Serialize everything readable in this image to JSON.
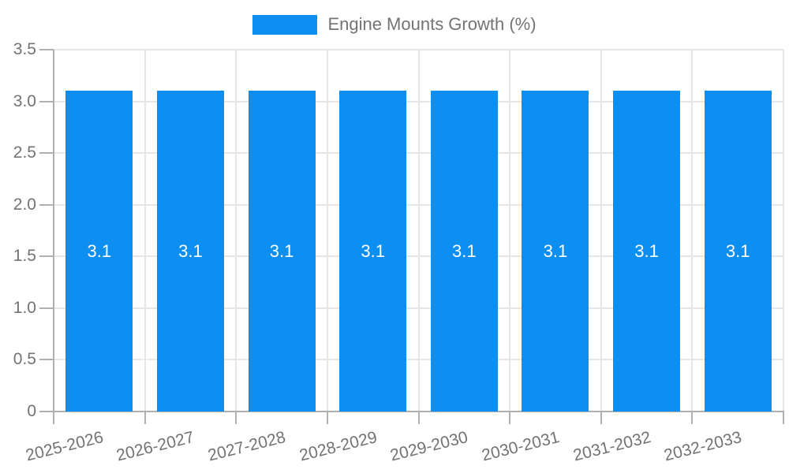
{
  "legend": {
    "label": "Engine Mounts Growth (%)"
  },
  "chart_data": {
    "type": "bar",
    "title": "",
    "legend_label": "Engine Mounts Growth (%)",
    "legend_position": "top-center",
    "categories": [
      "2025-2026",
      "2026-2027",
      "2027-2028",
      "2028-2029",
      "2029-2030",
      "2030-2031",
      "2031-2032",
      "2032-2033"
    ],
    "values": [
      3.1,
      3.1,
      3.1,
      3.1,
      3.1,
      3.1,
      3.1,
      3.1
    ],
    "bar_value_labels": [
      "3.1",
      "3.1",
      "3.1",
      "3.1",
      "3.1",
      "3.1",
      "3.1",
      "3.1"
    ],
    "xlabel": "",
    "ylabel": "",
    "ylim": [
      0,
      3.5
    ],
    "ytick_values": [
      0,
      0.5,
      1.0,
      1.5,
      2.0,
      2.5,
      3.0,
      3.5
    ],
    "ytick_labels": [
      "0",
      "0.5",
      "1.0",
      "1.5",
      "2.0",
      "2.5",
      "3.0",
      "3.5"
    ],
    "grid": true,
    "colors": {
      "bar": "#0d8ff2",
      "bar_label": "#ffffff",
      "axis_text": "#737373",
      "grid_line": "#e6e6e6",
      "axis_line": "#b0b0b0"
    }
  }
}
